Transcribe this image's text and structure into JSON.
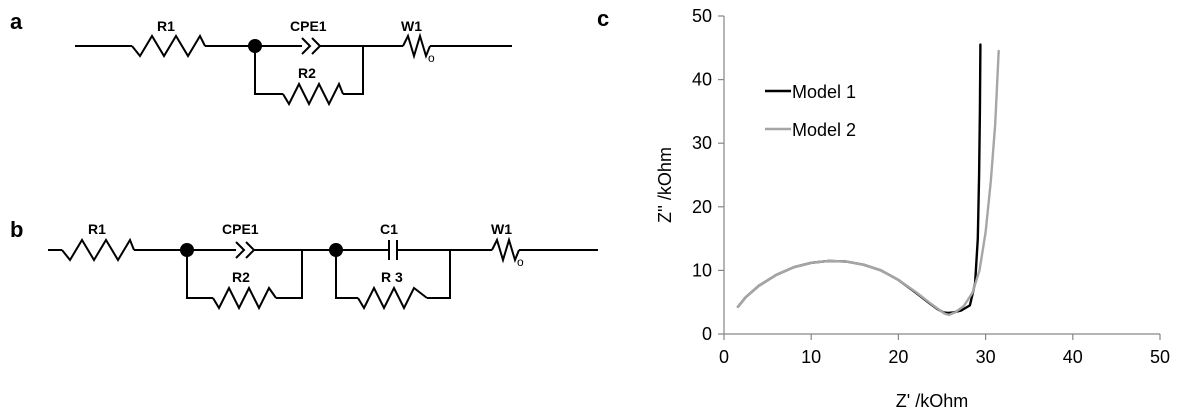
{
  "panels": {
    "a": {
      "letter": "a",
      "labels": {
        "r1": "R1",
        "cpe1": "CPE1",
        "w1": "W1",
        "r2": "R2"
      }
    },
    "b": {
      "letter": "b",
      "labels": {
        "r1": "R1",
        "cpe1": "CPE1",
        "c1": "C1",
        "w1": "W1",
        "r2": "R2",
        "r3": "R 3"
      }
    },
    "c": {
      "letter": "c"
    }
  },
  "chart_data": {
    "type": "line",
    "xlabel": "Z' /kOhm",
    "ylabel": "Z'' /kOhm",
    "xlim": [
      0,
      50
    ],
    "ylim": [
      0,
      50
    ],
    "xticks": [
      0,
      10,
      20,
      30,
      40,
      50
    ],
    "yticks": [
      0,
      10,
      20,
      30,
      40,
      50
    ],
    "grid": false,
    "legend_position": "top-left",
    "series": [
      {
        "name": "Model 1",
        "color": "#000000",
        "x": [
          1.6,
          2.5,
          4,
          6,
          8,
          10,
          12,
          14,
          16,
          18,
          20,
          22,
          23.5,
          24.5,
          25.2,
          25.7,
          26.3,
          27.2,
          28.2,
          28.8,
          29.1,
          29.25,
          29.35,
          29.4
        ],
        "y": [
          4.3,
          5.8,
          7.6,
          9.3,
          10.5,
          11.2,
          11.5,
          11.4,
          10.9,
          10.0,
          8.5,
          6.5,
          4.9,
          3.9,
          3.4,
          3.3,
          3.4,
          3.7,
          4.5,
          8.0,
          15.0,
          25.0,
          35.0,
          45.5
        ]
      },
      {
        "name": "Model 2",
        "color": "#a6a6a6",
        "x": [
          1.6,
          2.5,
          4,
          6,
          8,
          10,
          12,
          14,
          16,
          18,
          20,
          22,
          23.5,
          24.5,
          25.3,
          25.8,
          26.5,
          27.5,
          28.5,
          29.3,
          30.0,
          30.6,
          31.1,
          31.5
        ],
        "y": [
          4.3,
          5.8,
          7.6,
          9.3,
          10.5,
          11.2,
          11.5,
          11.4,
          10.9,
          10.0,
          8.5,
          6.6,
          5.0,
          4.0,
          3.2,
          3.0,
          3.4,
          4.4,
          6.5,
          10.0,
          16.0,
          24.0,
          33.0,
          44.5
        ]
      }
    ]
  }
}
